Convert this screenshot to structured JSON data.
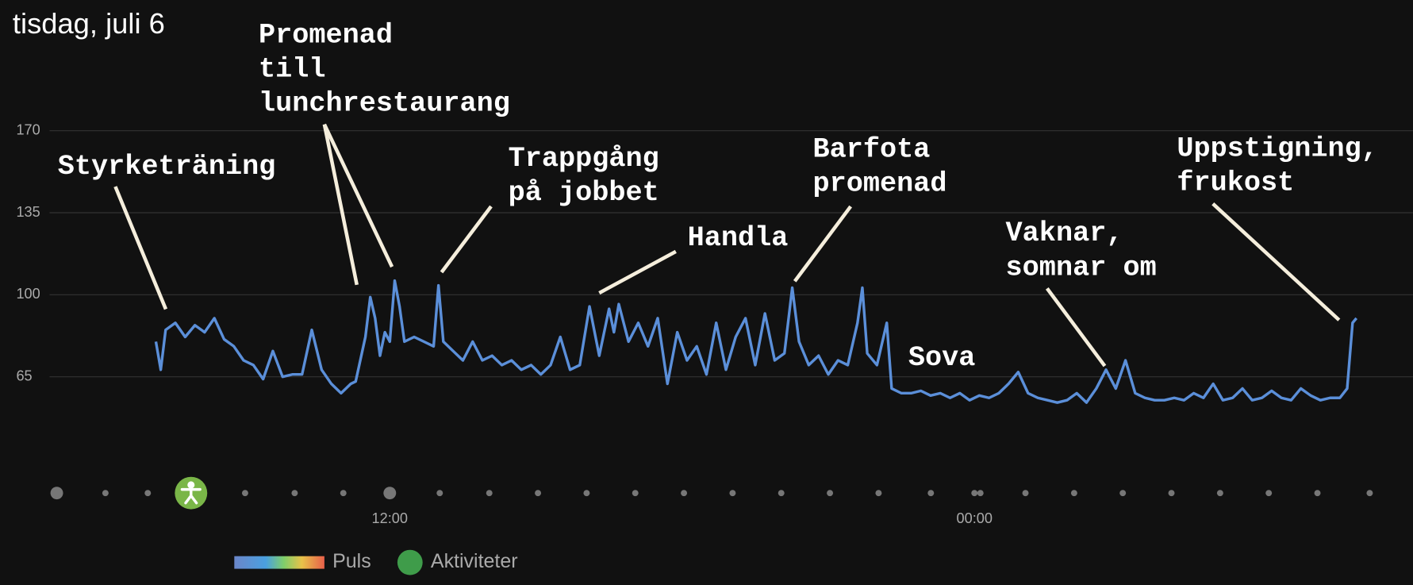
{
  "chart_data": {
    "type": "line",
    "title": "tisdag, juli 6",
    "x": [
      7.2,
      7.3,
      7.4,
      7.6,
      7.8,
      8.0,
      8.2,
      8.4,
      8.6,
      8.8,
      9.0,
      9.2,
      9.4,
      9.6,
      9.8,
      10.0,
      10.2,
      10.4,
      10.6,
      10.8,
      11.0,
      11.2,
      11.3,
      11.5,
      11.6,
      11.7,
      11.8,
      11.9,
      12.0,
      12.1,
      12.2,
      12.3,
      12.5,
      12.7,
      12.9,
      13.0,
      13.1,
      13.3,
      13.5,
      13.7,
      13.9,
      14.1,
      14.3,
      14.5,
      14.7,
      14.9,
      15.1,
      15.3,
      15.5,
      15.7,
      15.9,
      16.1,
      16.3,
      16.5,
      16.6,
      16.7,
      16.9,
      17.1,
      17.3,
      17.5,
      17.7,
      17.9,
      18.1,
      18.3,
      18.5,
      18.7,
      18.9,
      19.1,
      19.3,
      19.5,
      19.7,
      19.9,
      20.1,
      20.26,
      20.4,
      20.6,
      20.8,
      21.0,
      21.2,
      21.4,
      21.6,
      21.7,
      21.8,
      22.0,
      22.2,
      22.3,
      22.5,
      22.7,
      22.9,
      23.1,
      23.3,
      23.5,
      23.7,
      23.9,
      24.1,
      24.3,
      24.5,
      24.7,
      24.9,
      25.1,
      25.3,
      25.5,
      25.7,
      25.9,
      26.1,
      26.3,
      26.5,
      26.7,
      26.9,
      27.1,
      27.3,
      27.5,
      27.7,
      27.9,
      28.1,
      28.3,
      28.5,
      28.7,
      28.9,
      29.1,
      29.3,
      29.5,
      29.7,
      29.9,
      30.1,
      30.3,
      30.5,
      30.7,
      30.9,
      31.1,
      31.3,
      31.5,
      31.65,
      31.76,
      31.84
    ],
    "series": [
      {
        "name": "Puls",
        "color": "#5b8fd9",
        "values": [
          80,
          68,
          85,
          88,
          82,
          87,
          84,
          90,
          81,
          78,
          72,
          70,
          64,
          76,
          65,
          66,
          66,
          85,
          68,
          62,
          58,
          62,
          63,
          82,
          99,
          90,
          74,
          84,
          80,
          106,
          95,
          80,
          82,
          80,
          78,
          104,
          80,
          76,
          72,
          80,
          72,
          74,
          70,
          72,
          68,
          70,
          66,
          70,
          82,
          68,
          70,
          95,
          74,
          94,
          84,
          96,
          80,
          88,
          78,
          90,
          62,
          84,
          72,
          78,
          66,
          88,
          68,
          82,
          90,
          70,
          92,
          72,
          75,
          103,
          80,
          70,
          74,
          66,
          72,
          70,
          88,
          103,
          75,
          70,
          88,
          60,
          58,
          58,
          59,
          57,
          58,
          56,
          58,
          55,
          57,
          56,
          58,
          62,
          67,
          58,
          56,
          55,
          54,
          55,
          58,
          54,
          60,
          68,
          60,
          72,
          58,
          56,
          55,
          55,
          56,
          55,
          58,
          56,
          62,
          55,
          56,
          60,
          55,
          56,
          59,
          56,
          55,
          60,
          57,
          55,
          56,
          56,
          60,
          88,
          90
        ]
      }
    ],
    "xlim": [
      4,
      33
    ],
    "xticks": [
      {
        "value": 12,
        "label": "12:00"
      },
      {
        "value": 24,
        "label": "00:00"
      }
    ],
    "ylim": [
      40,
      190
    ],
    "yticks": [
      65,
      100,
      135,
      170
    ],
    "grid": true,
    "annotations": [
      "Styrketräning",
      "Promenad\ntill\nlunchrestaurang",
      "Trappgång\npå jobbet",
      "Handla",
      "Barfota\npromenad",
      "Sova",
      "Vaknar,\nsomnar om",
      "Uppstigning,\nfrukost"
    ],
    "activity_legend": "Aktiviteter",
    "activity_color": "#3f9c4a"
  }
}
